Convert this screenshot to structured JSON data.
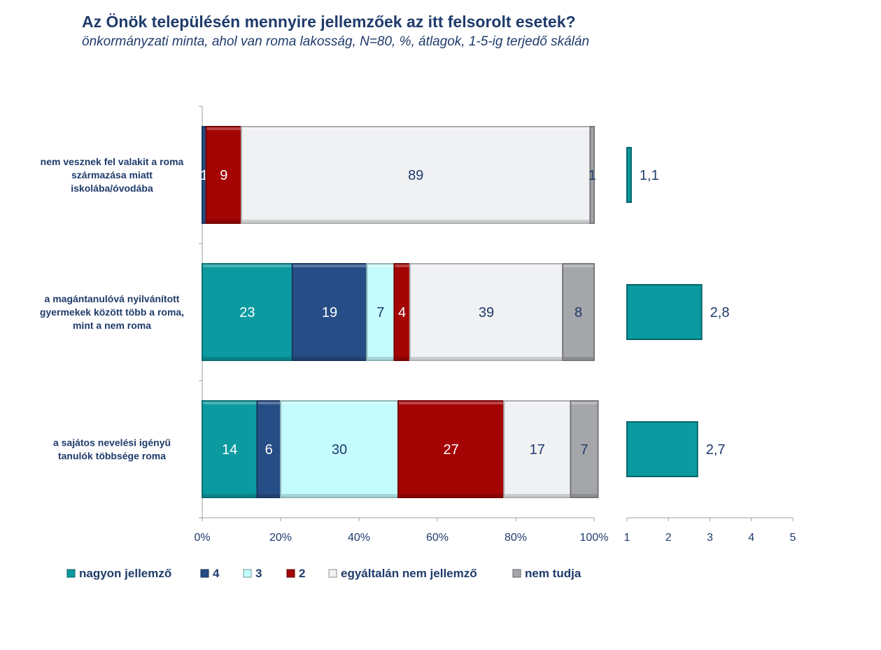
{
  "chart_data": {
    "type": "bar",
    "title": "Az Önök településén mennyire jellemzőek az itt felsorolt esetek?",
    "subtitle": "önkormányzati minta, ahol van roma lakosság, N=80, %, átlagok, 1-5-ig terjedő skálán",
    "categories": [
      [
        "nem vesznek fel valakit a roma",
        "származása miatt",
        "iskolába/óvodába"
      ],
      [
        "a magántanulóvá nyilvánított",
        "gyermekek között több a roma,",
        "mint a nem roma"
      ],
      [
        "a sajátos nevelési igényű",
        "tanulók többsége roma"
      ]
    ],
    "series": [
      {
        "name": "nagyon jellemző",
        "color": "#0b9aa0",
        "text_color": "#ffffff",
        "values": [
          0,
          23,
          14
        ]
      },
      {
        "name": "4",
        "color": "#264d85",
        "text_color": "#ffffff",
        "values": [
          1,
          19,
          6
        ]
      },
      {
        "name": "3",
        "color": "#c4fbfd",
        "text_color": "#1f3b6b",
        "values": [
          0,
          7,
          30
        ]
      },
      {
        "name": "2",
        "color": "#a40404",
        "text_color": "#ffffff",
        "values": [
          9,
          4,
          27
        ]
      },
      {
        "name": "egyáltalán nem jellemző",
        "color": "#f0f1f3",
        "text_color": "#1f3b6b",
        "values": [
          89,
          39,
          17
        ]
      },
      {
        "name": "nem tudja",
        "color": "#a5a6aa",
        "text_color": "#1f3b6b",
        "values": [
          1,
          8,
          7
        ]
      }
    ],
    "x_ticks": [
      "0%",
      "20%",
      "40%",
      "60%",
      "80%",
      "100%"
    ],
    "xlim": [
      0,
      100
    ],
    "averages": {
      "values": [
        1.1,
        2.8,
        2.7
      ],
      "labels": [
        "1,1",
        "2,8",
        "2,7"
      ],
      "color": "#0b9aa0",
      "xlim": [
        1,
        5
      ],
      "ticks": [
        "1",
        "2",
        "3",
        "4",
        "5"
      ]
    },
    "legend_position": "bottom"
  }
}
